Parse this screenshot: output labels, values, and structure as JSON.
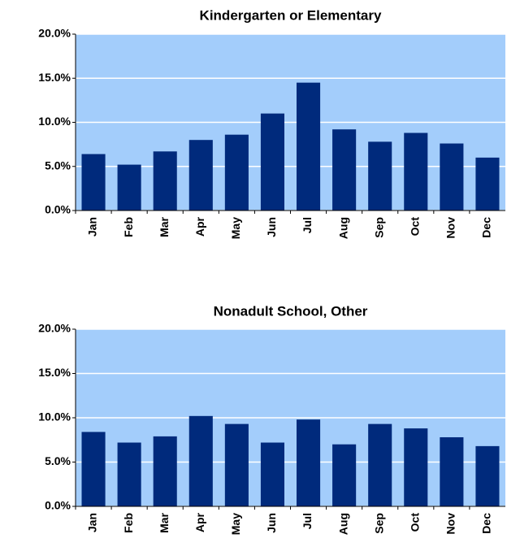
{
  "chart_data": [
    {
      "type": "bar",
      "title": "Kindergarten or Elementary",
      "categories": [
        "Jan",
        "Feb",
        "Mar",
        "Apr",
        "May",
        "Jun",
        "Jul",
        "Aug",
        "Sep",
        "Oct",
        "Nov",
        "Dec"
      ],
      "values": [
        6.4,
        5.2,
        6.7,
        8.0,
        8.6,
        11.0,
        14.5,
        9.2,
        7.8,
        8.8,
        7.6,
        6.0
      ],
      "color": "#002a7c",
      "background": "#a3cdfb",
      "grid": true,
      "ylim": [
        0,
        20
      ],
      "yticks": [
        {
          "value": 0,
          "label": "0.0%"
        },
        {
          "value": 5,
          "label": "5.0%"
        },
        {
          "value": 10,
          "label": "10.0%"
        },
        {
          "value": 15,
          "label": "15.0%"
        },
        {
          "value": 20,
          "label": "20.0%"
        }
      ]
    },
    {
      "type": "bar",
      "title": "Nonadult School, Other",
      "categories": [
        "Jan",
        "Feb",
        "Mar",
        "Apr",
        "May",
        "Jun",
        "Jul",
        "Aug",
        "Sep",
        "Oct",
        "Nov",
        "Dec"
      ],
      "values": [
        8.4,
        7.2,
        7.9,
        10.2,
        9.3,
        7.2,
        9.8,
        7.0,
        9.3,
        8.8,
        7.8,
        6.8
      ],
      "color": "#002a7c",
      "background": "#a3cdfb",
      "grid": true,
      "ylim": [
        0,
        20
      ],
      "yticks": [
        {
          "value": 0,
          "label": "0.0%"
        },
        {
          "value": 5,
          "label": "5.0%"
        },
        {
          "value": 10,
          "label": "10.0%"
        },
        {
          "value": 15,
          "label": "15.0%"
        },
        {
          "value": 20,
          "label": "20.0%"
        }
      ]
    }
  ]
}
